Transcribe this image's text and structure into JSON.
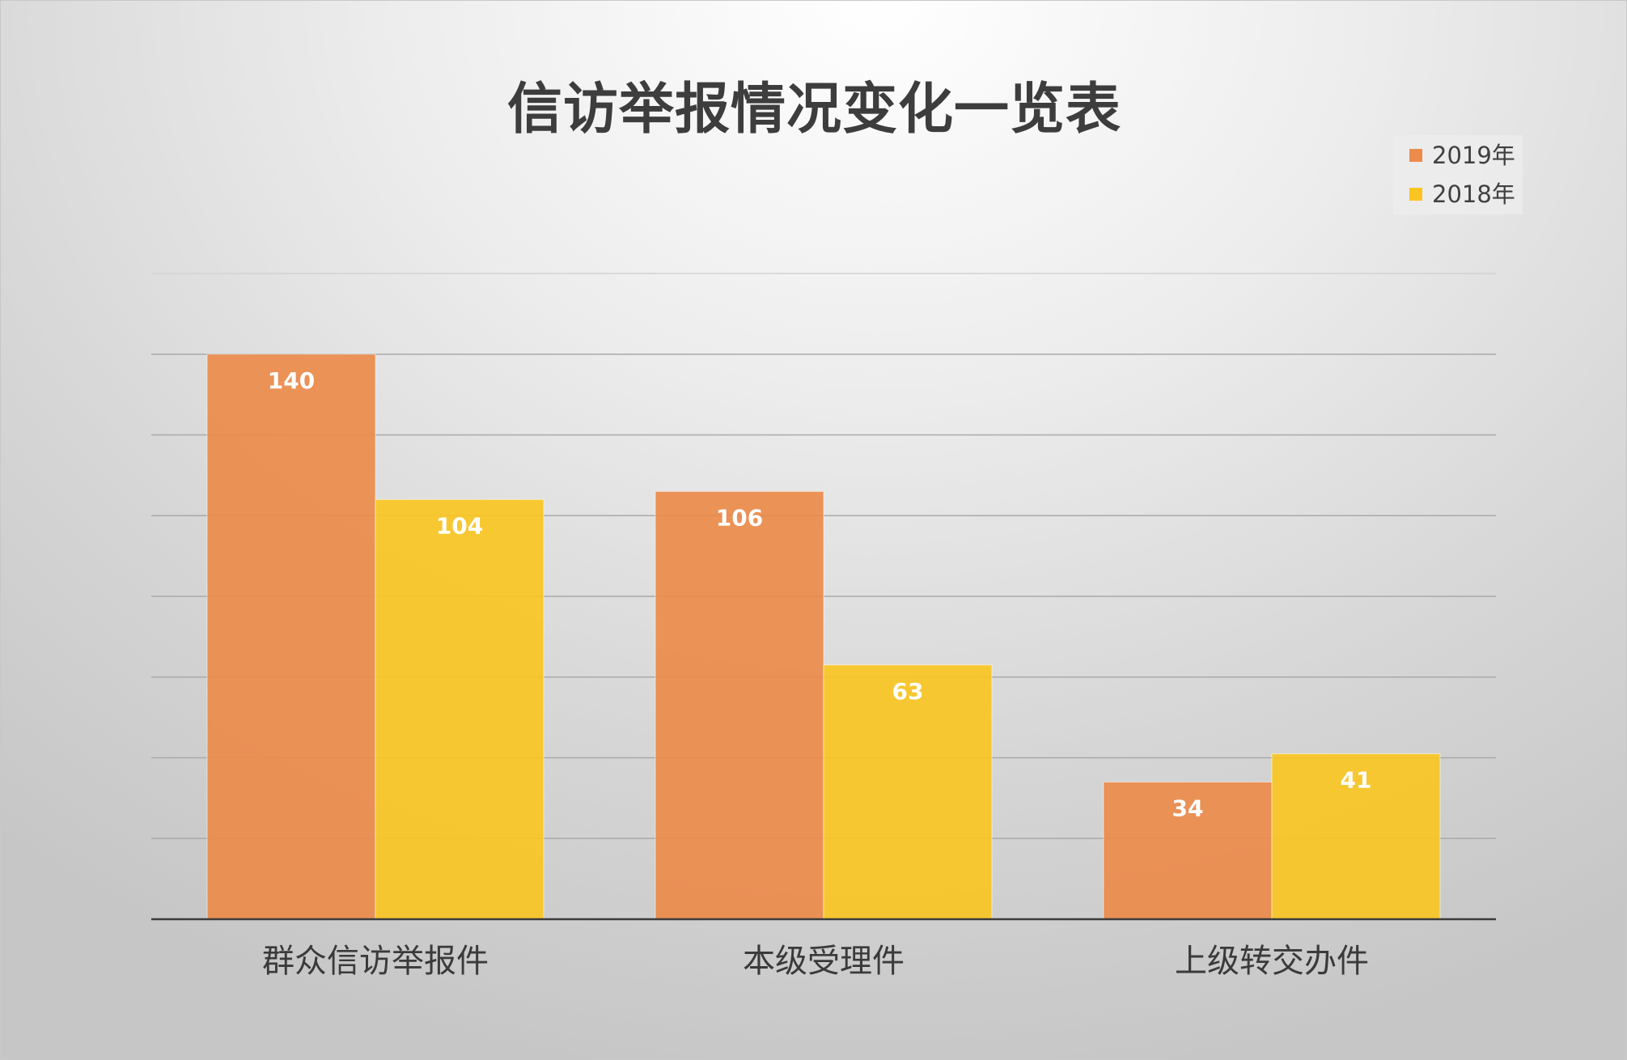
{
  "chart_data": {
    "type": "bar",
    "title": "信访举报情况变化一览表",
    "categories": [
      "群众信访举报件",
      "本级受理件",
      "上级转交办件"
    ],
    "series": [
      {
        "name": "2019年",
        "color": "#EC8B4B",
        "values": [
          140,
          106,
          34
        ]
      },
      {
        "name": "2018年",
        "color": "#FAC523",
        "values": [
          104,
          63,
          41
        ]
      }
    ],
    "ylim": [
      0,
      160
    ],
    "y_gridline_step": 20,
    "grid": true,
    "y_tick_labels_shown": false,
    "data_labels": true,
    "legend_position": "top-right",
    "xlabel": "",
    "ylabel": ""
  }
}
